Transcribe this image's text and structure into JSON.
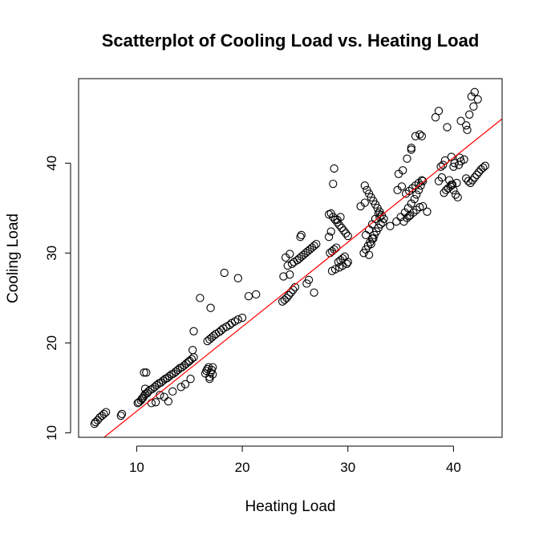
{
  "chart_data": {
    "type": "scatter",
    "title": "Scatterplot of Cooling Load vs. Heating Load",
    "xlabel": "Heating Load",
    "ylabel": "Cooling Load",
    "xlim": [
      4.5,
      44.6
    ],
    "ylim": [
      9.5,
      49.4
    ],
    "xticks": [
      10,
      20,
      30,
      40
    ],
    "yticks": [
      10,
      20,
      30,
      40
    ],
    "point_color": "#000000",
    "fit_line": {
      "color": "#ff0000",
      "intercept": 3.0,
      "slope": 0.94
    },
    "x": [
      6.0,
      6.1,
      6.3,
      6.5,
      6.7,
      6.9,
      7.1,
      8.5,
      8.6,
      10.1,
      10.2,
      10.4,
      10.5,
      10.6,
      10.7,
      10.8,
      11.0,
      11.1,
      11.3,
      11.5,
      11.7,
      11.9,
      12.1,
      12.3,
      12.5,
      12.7,
      12.9,
      13.1,
      13.3,
      13.5,
      13.7,
      13.9,
      14.1,
      14.3,
      14.5,
      14.7,
      14.9,
      15.0,
      15.2,
      15.4,
      11.8,
      12.6,
      13.4,
      14.2,
      14.6,
      15.1,
      13.0,
      12.2,
      11.4,
      10.9,
      10.7,
      10.8,
      15.3,
      15.4,
      16.5,
      16.6,
      16.7,
      16.8,
      16.9,
      17.0,
      17.1,
      17.2,
      16.7,
      16.9,
      17.1,
      17.3,
      17.5,
      17.8,
      18.0,
      18.2,
      18.5,
      18.8,
      19.0,
      19.3,
      19.6,
      20.0,
      16.9,
      17.2,
      18.3,
      19.6,
      20.6,
      21.3,
      16.0,
      17.0,
      23.8,
      24.0,
      24.2,
      24.4,
      24.6,
      24.8,
      25.0,
      23.9,
      24.5,
      24.3,
      24.7,
      24.9,
      25.2,
      25.4,
      25.6,
      25.8,
      26.0,
      26.2,
      26.4,
      26.6,
      26.8,
      27.0,
      26.8,
      25.5,
      25.6,
      26.1,
      26.3,
      24.1,
      24.5,
      28.2,
      28.4,
      28.6,
      28.8,
      29.0,
      29.2,
      29.4,
      29.6,
      29.8,
      30.0,
      28.3,
      28.5,
      28.7,
      28.9,
      29.1,
      29.3,
      29.5,
      29.7,
      28.5,
      28.8,
      29.2,
      29.5,
      29.9,
      30.0,
      28.6,
      28.7,
      28.2,
      28.4,
      29.0,
      29.3,
      31.6,
      31.8,
      32.0,
      32.2,
      32.4,
      32.6,
      32.8,
      33.0,
      33.2,
      33.4,
      31.5,
      31.7,
      31.9,
      32.1,
      32.3,
      32.5,
      32.7,
      32.9,
      33.1,
      31.7,
      32.0,
      32.3,
      32.6,
      32.9,
      33.0,
      32.0,
      32.2,
      32.4,
      31.2,
      31.6,
      33.3,
      34.0,
      34.6,
      35.0,
      35.4,
      35.7,
      36.0,
      36.3,
      36.5,
      36.7,
      36.9,
      37.1,
      34.8,
      35.2,
      35.6,
      36.0,
      36.4,
      36.8,
      37.0,
      35.5,
      35.8,
      36.1,
      36.4,
      36.7,
      37.0,
      35.6,
      35.9,
      36.2,
      36.5,
      36.8,
      34.7,
      35.1,
      35.3,
      35.8,
      37.1,
      37.5,
      36.0,
      38.6,
      38.8,
      38.9,
      39.0,
      39.2,
      39.4,
      39.6,
      39.8,
      40.0,
      40.2,
      40.4,
      40.6,
      39.1,
      39.3,
      39.5,
      39.7,
      39.9,
      40.3,
      39.8,
      40.0,
      40.1,
      40.5,
      40.7,
      41.0,
      41.2,
      41.4,
      41.6,
      41.8,
      42.0,
      42.2,
      42.4,
      42.6,
      42.8,
      43.0,
      41.5,
      41.9,
      42.3,
      40.7,
      41.2,
      41.7,
      42.0,
      41.3,
      38.3,
      38.6
    ],
    "y": [
      11.0,
      11.2,
      11.4,
      11.7,
      11.9,
      12.1,
      12.3,
      11.9,
      12.1,
      13.3,
      13.4,
      13.6,
      13.8,
      13.9,
      14.1,
      14.3,
      14.4,
      14.6,
      14.8,
      14.9,
      15.1,
      15.3,
      15.5,
      15.6,
      15.8,
      16.0,
      16.1,
      16.3,
      16.5,
      16.6,
      16.8,
      17.0,
      17.2,
      17.3,
      17.5,
      17.7,
      17.9,
      18.0,
      18.2,
      18.4,
      13.4,
      14.0,
      14.6,
      15.1,
      15.4,
      16.0,
      13.5,
      14.2,
      13.3,
      16.7,
      16.7,
      14.9,
      19.2,
      21.3,
      16.6,
      16.9,
      17.1,
      17.3,
      16.2,
      16.7,
      17.0,
      17.3,
      20.2,
      20.4,
      20.6,
      20.8,
      21.0,
      21.2,
      21.4,
      21.6,
      21.8,
      22.0,
      22.2,
      22.4,
      22.6,
      22.8,
      16.0,
      16.5,
      27.8,
      27.2,
      25.2,
      25.4,
      25.0,
      23.9,
      24.6,
      24.8,
      25.0,
      25.3,
      25.6,
      25.9,
      26.2,
      27.4,
      27.6,
      28.6,
      28.8,
      29.0,
      29.2,
      29.4,
      29.6,
      29.8,
      30.0,
      30.2,
      30.4,
      30.6,
      30.8,
      31.0,
      25.6,
      31.8,
      32.0,
      26.6,
      27.0,
      29.5,
      29.9,
      34.3,
      34.4,
      34.0,
      33.7,
      33.4,
      33.1,
      32.8,
      32.5,
      32.2,
      31.9,
      30.0,
      30.2,
      30.4,
      30.6,
      29.0,
      29.2,
      29.4,
      29.6,
      28.0,
      28.2,
      28.4,
      28.6,
      28.8,
      29.0,
      37.7,
      39.4,
      31.8,
      32.4,
      33.7,
      34.0,
      37.5,
      37.0,
      36.6,
      36.2,
      35.8,
      35.4,
      35.0,
      34.6,
      34.2,
      33.8,
      30.0,
      30.4,
      30.8,
      31.2,
      31.6,
      32.0,
      32.4,
      32.8,
      33.2,
      32.0,
      32.6,
      33.2,
      33.8,
      34.4,
      34.0,
      29.8,
      31.0,
      31.6,
      35.2,
      35.6,
      33.4,
      33.0,
      33.5,
      34.0,
      34.5,
      35.0,
      35.5,
      36.0,
      36.5,
      37.0,
      37.5,
      38.0,
      38.8,
      39.2,
      40.5,
      41.5,
      43.0,
      43.2,
      43.0,
      36.6,
      36.9,
      37.2,
      37.5,
      37.8,
      38.1,
      33.9,
      34.2,
      34.5,
      34.8,
      35.1,
      37.0,
      37.4,
      33.5,
      34.1,
      35.2,
      34.6,
      41.7,
      38.0,
      39.6,
      38.4,
      39.8,
      40.3,
      44.0,
      38.1,
      37.6,
      37.0,
      36.5,
      36.2,
      40.6,
      36.7,
      37.0,
      37.2,
      37.4,
      37.6,
      37.8,
      40.7,
      39.6,
      40.0,
      39.8,
      40.2,
      40.4,
      38.3,
      38.0,
      37.8,
      38.1,
      38.4,
      38.7,
      39.0,
      39.3,
      39.5,
      39.7,
      45.4,
      46.3,
      47.1,
      44.7,
      44.2,
      47.4,
      47.9,
      43.7,
      45.1,
      45.8
    ]
  }
}
